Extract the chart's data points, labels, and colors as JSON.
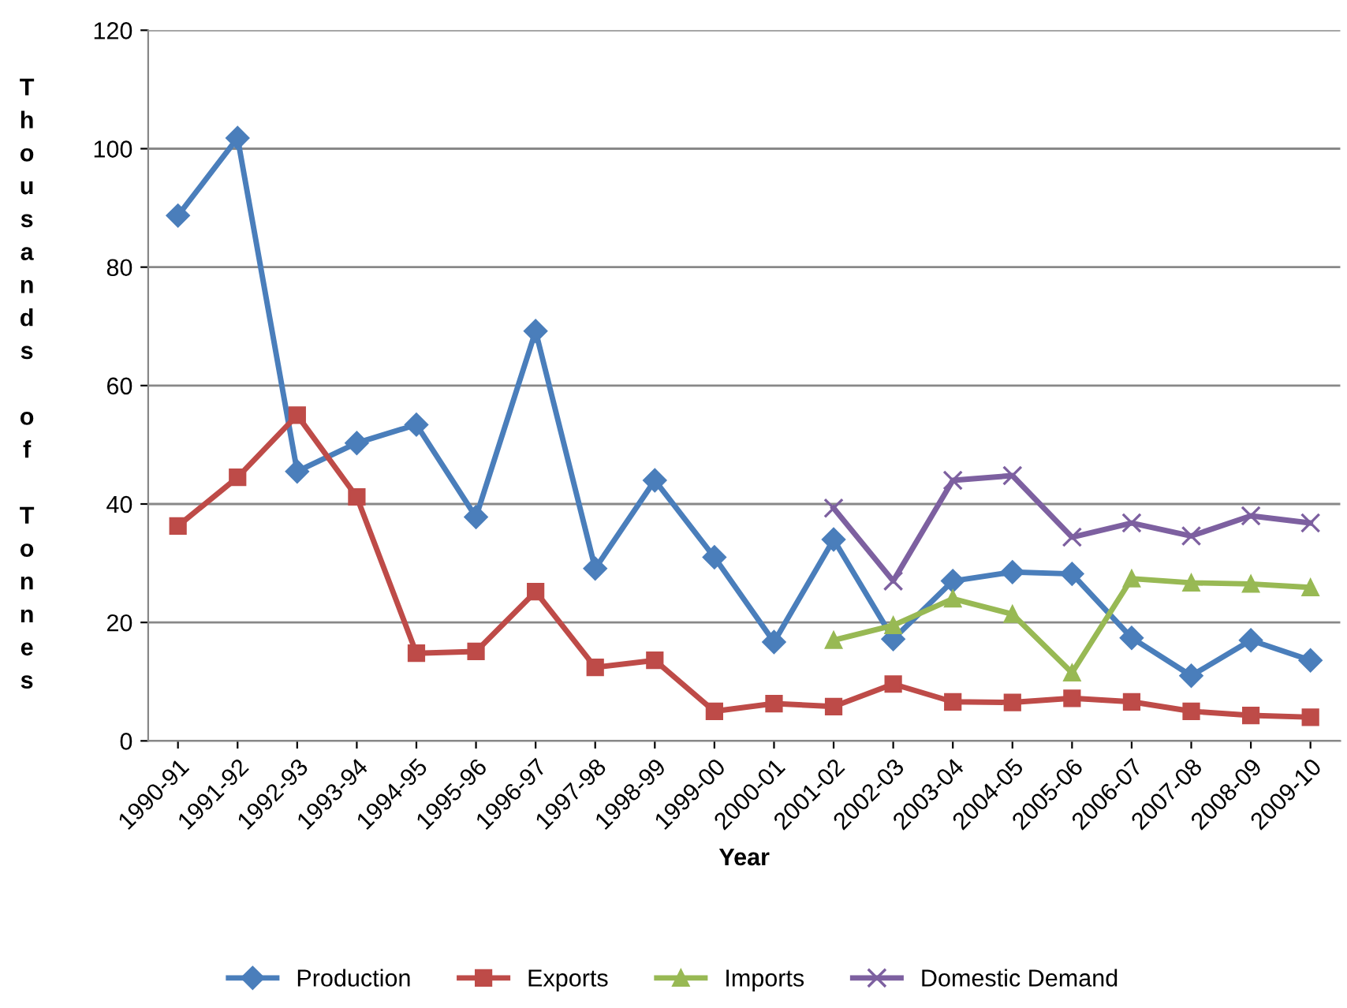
{
  "chart_data": {
    "type": "line",
    "xlabel": "Year",
    "ylabel": "Thousands of Tonnes",
    "categories": [
      "1990-91",
      "1991-92",
      "1992-93",
      "1993-94",
      "1994-95",
      "1995-96",
      "1996-97",
      "1997-98",
      "1998-99",
      "1999-00",
      "2000-01",
      "2001-02",
      "2002-03",
      "2003-04",
      "2004-05",
      "2005-06",
      "2006-07",
      "2007-08",
      "2008-09",
      "2009-10"
    ],
    "series": [
      {
        "name": "Production",
        "color": "#4a7ebb",
        "marker": "diamond",
        "values": [
          88.7,
          101.8,
          45.5,
          50.3,
          53.4,
          37.8,
          69.2,
          29.1,
          44.0,
          31.0,
          16.7,
          34.0,
          17.2,
          27.0,
          28.5,
          28.2,
          17.4,
          11.0,
          17.0,
          13.6
        ]
      },
      {
        "name": "Exports",
        "color": "#be4b48",
        "marker": "square",
        "values": [
          36.3,
          44.5,
          55.0,
          41.2,
          14.8,
          15.1,
          25.2,
          12.4,
          13.6,
          5.0,
          6.3,
          5.8,
          9.6,
          6.6,
          6.5,
          7.2,
          6.6,
          5.0,
          4.3,
          4.0
        ]
      },
      {
        "name": "Imports",
        "color": "#98b954",
        "marker": "triangle",
        "values": [
          null,
          null,
          null,
          null,
          null,
          null,
          null,
          null,
          null,
          null,
          null,
          17.0,
          19.5,
          24.0,
          21.4,
          11.5,
          27.4,
          26.7,
          26.5,
          25.9
        ]
      },
      {
        "name": "Domestic Demand",
        "color": "#7d60a0",
        "marker": "cross",
        "values": [
          null,
          null,
          null,
          null,
          null,
          null,
          null,
          null,
          null,
          null,
          null,
          39.3,
          27.0,
          44.0,
          44.8,
          34.4,
          36.8,
          34.6,
          38.0,
          36.8
        ]
      }
    ],
    "ylim": [
      0,
      120
    ],
    "yticks": [
      0,
      20,
      40,
      60,
      80,
      100,
      120
    ],
    "grid": "y",
    "legend": "bottom"
  }
}
